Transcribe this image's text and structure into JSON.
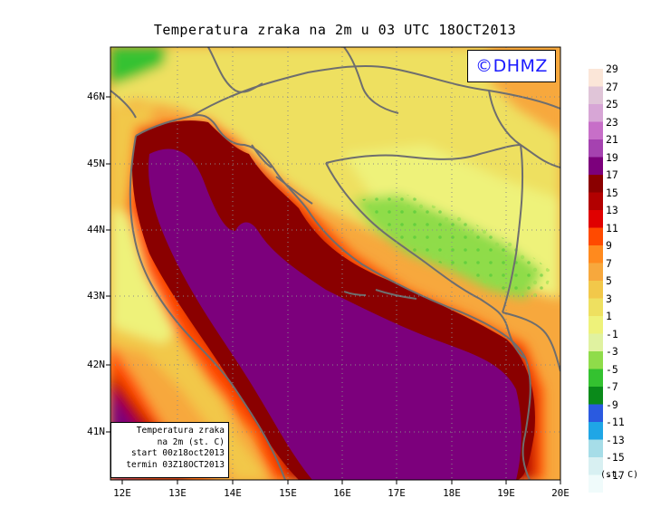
{
  "title": "Temperatura zraka na 2m u 03 UTC 18OCT2013",
  "badge": "©DHMZ",
  "infobox": {
    "line1": "Temperatura zraka",
    "line2": "na 2m (st. C)",
    "line3": "start 00z18oct2013",
    "line4": "termin 03Z18OCT2013"
  },
  "lat_labels": [
    "46N",
    "45N",
    "44N",
    "43N",
    "42N",
    "41N"
  ],
  "lon_labels": [
    "12E",
    "13E",
    "14E",
    "15E",
    "16E",
    "17E",
    "18E",
    "19E",
    "20E"
  ],
  "colorbar": {
    "units": "(st. C)",
    "labels": [
      "29",
      "27",
      "25",
      "23",
      "21",
      "19",
      "17",
      "15",
      "13",
      "11",
      "9",
      "7",
      "5",
      "3",
      "1",
      "-1",
      "-3",
      "-5",
      "-7",
      "-9",
      "-11",
      "-13",
      "-15",
      "-17"
    ],
    "colors": [
      "#fbe6d8",
      "#e0c5d8",
      "#d7a6d6",
      "#c76fc8",
      "#a542b0",
      "#7c007c",
      "#8a0000",
      "#b20000",
      "#e00000",
      "#ff4a00",
      "#ff8a1e",
      "#f7a83d",
      "#f2c84a",
      "#eee060",
      "#eef27a",
      "#e0f2a0",
      "#8fdc4a",
      "#34c230",
      "#0a8a1a",
      "#2a5ae0",
      "#1fa6e6",
      "#a6dde8",
      "#d8f0f2",
      "#f0fbfb"
    ]
  },
  "legend_colors": {
    "sea_warm": "#7c007c",
    "coast_hot": "#8a0000",
    "inland_warm": "#f2c84a",
    "inland_cool": "#eef27a",
    "cold": "#8fdc4a",
    "boundary": "#6e6e6e"
  }
}
